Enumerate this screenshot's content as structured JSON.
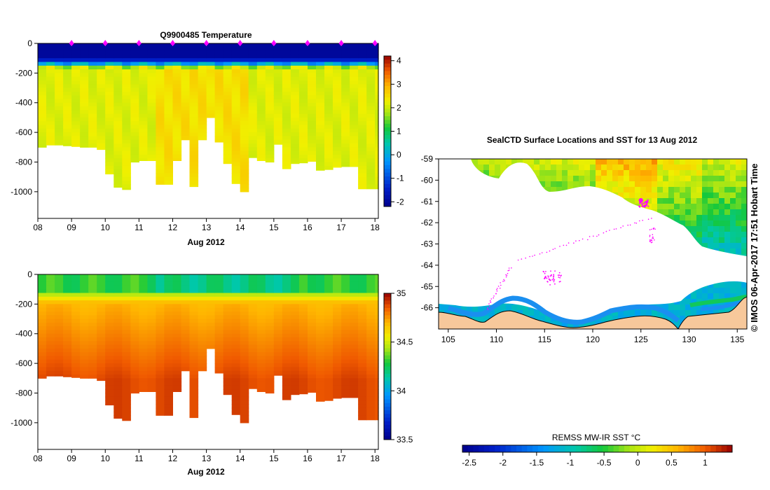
{
  "chart_data": [
    {
      "type": "heatmap",
      "title": "Q9900485  Temperature",
      "xlabel": "Aug 2012",
      "ylabel": "",
      "xlim": [
        8,
        18.1
      ],
      "ylim": [
        -1180,
        0
      ],
      "x_ticks": [
        "08",
        "09",
        "10",
        "11",
        "12",
        "13",
        "14",
        "15",
        "16",
        "17",
        "18"
      ],
      "y_ticks": [
        "0",
        "-200",
        "-400",
        "-600",
        "-800",
        "-1000"
      ],
      "profile_times": [
        8.0,
        8.25,
        8.5,
        8.75,
        9.0,
        9.25,
        9.5,
        9.75,
        10.0,
        10.25,
        10.5,
        10.75,
        11.0,
        11.25,
        11.5,
        11.75,
        12.0,
        12.25,
        12.5,
        12.75,
        13.0,
        13.25,
        13.5,
        13.75,
        14.0,
        14.25,
        14.5,
        14.75,
        15.0,
        15.25,
        15.5,
        15.75,
        16.0,
        16.25,
        16.5,
        16.75,
        17.0,
        17.25,
        17.5,
        17.75,
        18.0
      ],
      "max_depth": [
        -700,
        -685,
        -685,
        -690,
        -695,
        -700,
        -700,
        -715,
        -880,
        -970,
        -985,
        -800,
        -790,
        -790,
        -950,
        -950,
        -790,
        -650,
        -965,
        -650,
        -500,
        -665,
        -810,
        -945,
        -1000,
        -770,
        -790,
        -800,
        -680,
        -845,
        -810,
        -805,
        -795,
        -855,
        -850,
        -835,
        -830,
        -830,
        -980,
        -980,
        -980
      ],
      "surface_markers": [
        9.0,
        10.0,
        11.0,
        12.0,
        13.0,
        14.0,
        15.0,
        16.0,
        17.0,
        18.0
      ],
      "marker_color": "#ff00ff",
      "colorbar": {
        "min": -2.2,
        "max": 4.2,
        "ticks": [
          "4",
          "3",
          "2",
          "1",
          "0",
          "-1",
          "-2"
        ]
      }
    },
    {
      "type": "heatmap",
      "title": "",
      "xlabel": "Aug 2012",
      "ylabel": "",
      "xlim": [
        8,
        18.1
      ],
      "ylim": [
        -1180,
        0
      ],
      "x_ticks": [
        "08",
        "09",
        "10",
        "11",
        "12",
        "13",
        "14",
        "15",
        "16",
        "17",
        "18"
      ],
      "y_ticks": [
        "0",
        "-200",
        "-400",
        "-600",
        "-800",
        "-1000"
      ],
      "colorbar": {
        "min": 33.5,
        "max": 35.0,
        "ticks": [
          "35",
          "34.5",
          "34",
          "33.5"
        ]
      }
    },
    {
      "type": "heatmap",
      "title": "SealCTD Surface Locations and SST for 13 Aug 2012",
      "xlabel": "",
      "ylabel": "",
      "xlim": [
        104,
        136
      ],
      "ylim": [
        -67,
        -59
      ],
      "x_ticks": [
        "105",
        "110",
        "115",
        "120",
        "125",
        "130",
        "135"
      ],
      "y_ticks": [
        "-59",
        "-60",
        "-61",
        "-62",
        "-63",
        "-64",
        "-65",
        "-66"
      ],
      "land_color": "#f7c89b",
      "track_color": "#ff00ff",
      "colorbar": {
        "label": "REMSS MW-IR SST °C",
        "min": -2.6,
        "max": 1.4,
        "ticks": [
          "-2.5",
          "-2",
          "-1.5",
          "-1",
          "-0.5",
          "0",
          "0.5",
          "1"
        ]
      }
    }
  ],
  "watermark": "©  IMOS 06-Apr-2017 17:51 Hobart Time"
}
